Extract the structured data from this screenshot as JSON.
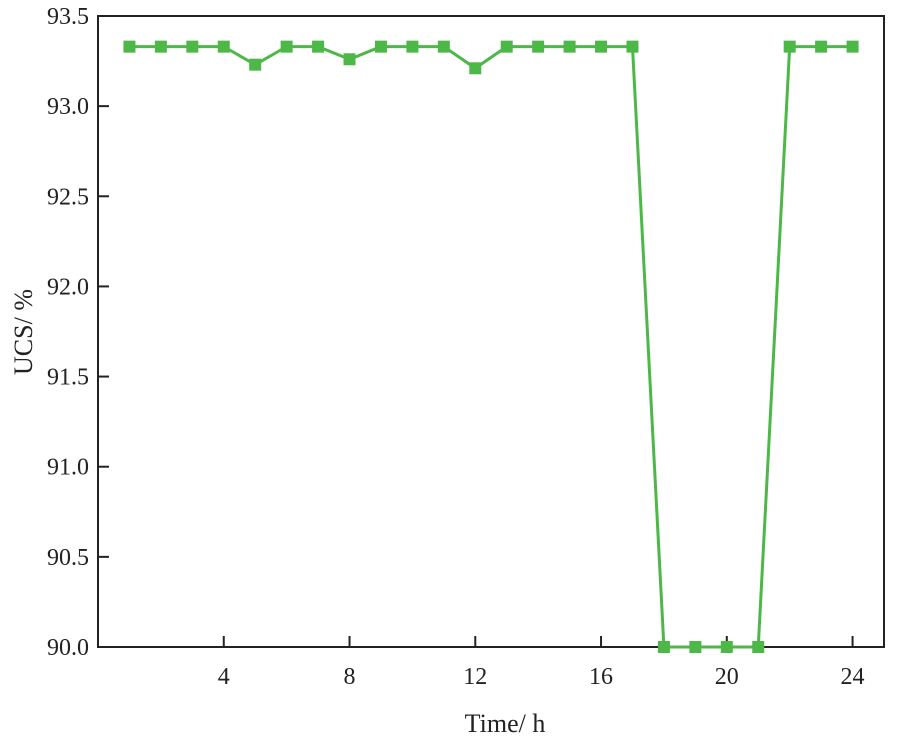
{
  "chart_data": {
    "type": "line",
    "xlabel": "Time/ h",
    "ylabel": "UCS/ %",
    "xlim": [
      0,
      25
    ],
    "ylim": [
      90.0,
      93.5
    ],
    "x_ticks": [
      4,
      8,
      12,
      16,
      20,
      24
    ],
    "x_tick_labels": [
      "4",
      "8",
      "12",
      "16",
      "20",
      "24"
    ],
    "y_ticks": [
      90.0,
      90.5,
      91.0,
      91.5,
      92.0,
      92.5,
      93.0,
      93.5
    ],
    "y_tick_labels": [
      "90.0",
      "90.5",
      "91.0",
      "91.5",
      "92.0",
      "92.5",
      "93.0",
      "93.5"
    ],
    "grid": false,
    "series": [
      {
        "color": "#4db848",
        "marker": "square",
        "x": [
          1,
          2,
          3,
          4,
          5,
          6,
          7,
          8,
          9,
          10,
          11,
          12,
          13,
          14,
          15,
          16,
          17,
          18,
          19,
          20,
          21,
          22,
          23,
          24
        ],
        "y": [
          93.33,
          93.33,
          93.33,
          93.33,
          93.23,
          93.33,
          93.33,
          93.26,
          93.33,
          93.33,
          93.33,
          93.21,
          93.33,
          93.33,
          93.33,
          93.33,
          93.33,
          90.0,
          90.0,
          90.0,
          90.0,
          93.33,
          93.33,
          93.33
        ]
      }
    ]
  }
}
